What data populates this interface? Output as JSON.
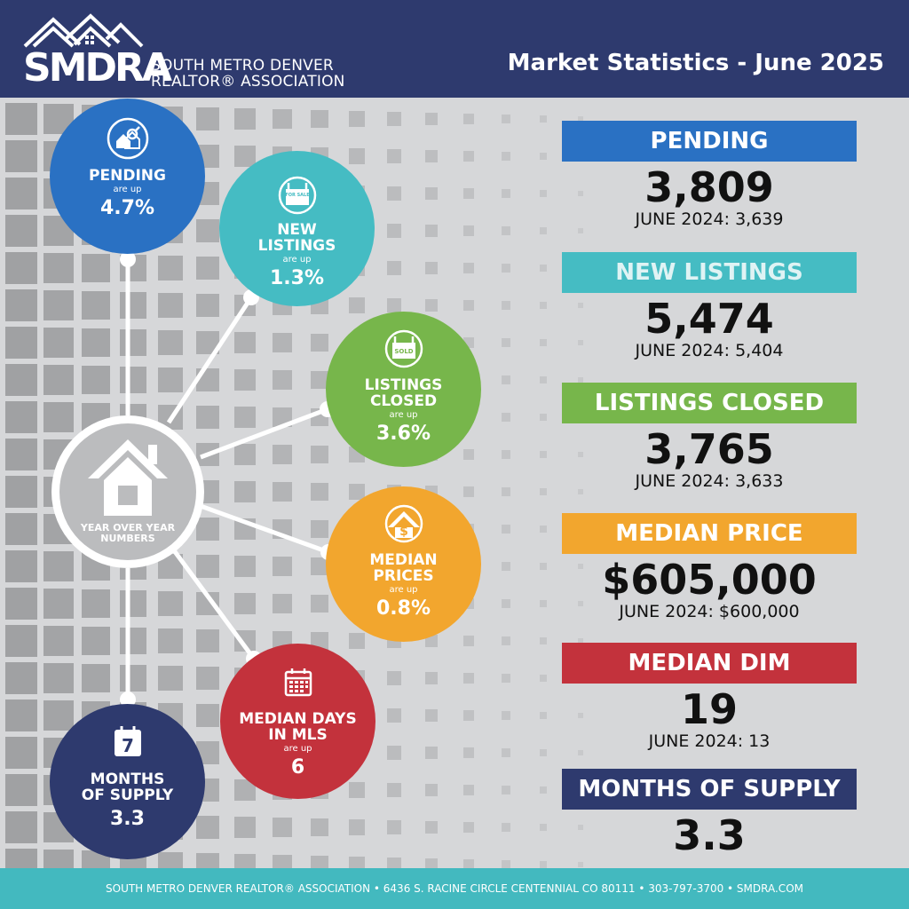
{
  "header": {
    "logo_text": "SMDRA",
    "logo_line1": "SOUTH METRO DENVER",
    "logo_line2": "REALTOR® ASSOCIATION",
    "title": "Market Statistics - June 2025"
  },
  "hub": {
    "label": "YEAR OVER YEAR\nNUMBERS",
    "icon": "house-icon"
  },
  "circles": [
    {
      "key": "pending",
      "label": "PENDING",
      "sub": "are up",
      "value": "4.7%",
      "color": "#2a71c3",
      "icon": "house-search-icon"
    },
    {
      "key": "new_listings",
      "label": "NEW\nLISTINGS",
      "sub": "are up",
      "value": "1.3%",
      "color": "#45bcc3",
      "icon": "for-sale-sign-icon"
    },
    {
      "key": "listings_closed",
      "label": "LISTINGS\nCLOSED",
      "sub": "are up",
      "value": "3.6%",
      "color": "#77b64b",
      "icon": "sold-sign-icon"
    },
    {
      "key": "median_prices",
      "label": "MEDIAN\nPRICES",
      "sub": "are up",
      "value": "0.8%",
      "color": "#f2a62e",
      "icon": "house-dollar-icon"
    },
    {
      "key": "median_days",
      "label": "MEDIAN DAYS\nIN MLS",
      "sub": "are up",
      "value": "6",
      "color": "#c3323c",
      "icon": "calendar-icon"
    },
    {
      "key": "months_supply",
      "label": "MONTHS\nOF SUPPLY",
      "sub": "",
      "value": "3.3",
      "color": "#2e3a6e",
      "icon": "calendar-7-icon"
    }
  ],
  "calendar_icon_number": "7",
  "for_sale_icon_text": "FOR SALE",
  "sold_icon_text": "SOLD",
  "stats": [
    {
      "key": "pending",
      "label": "PENDING",
      "value": "3,809",
      "prev": "JUNE 2024: 3,639",
      "color": "#2a71c3",
      "text_color": "#ffffff"
    },
    {
      "key": "new_listings",
      "label": "NEW LISTINGS",
      "value": "5,474",
      "prev": "JUNE 2024: 5,404",
      "color": "#45bcc3",
      "text_color": "#dff3f4"
    },
    {
      "key": "listings_closed",
      "label": "LISTINGS CLOSED",
      "value": "3,765",
      "prev": "JUNE 2024: 3,633",
      "color": "#77b64b",
      "text_color": "#ffffff"
    },
    {
      "key": "median_price",
      "label": "MEDIAN PRICE",
      "value": "$605,000",
      "prev": "JUNE 2024: $600,000",
      "color": "#f2a62e",
      "text_color": "#ffffff"
    },
    {
      "key": "median_dim",
      "label": "MEDIAN DIM",
      "value": "19",
      "prev": "JUNE 2024: 13",
      "color": "#c3323c",
      "text_color": "#ffffff"
    },
    {
      "key": "months_supply",
      "label": "MONTHS OF SUPPLY",
      "value": "3.3",
      "prev": "",
      "color": "#2e3a6e",
      "text_color": "#ffffff"
    }
  ],
  "footer": {
    "text": "SOUTH METRO DENVER REALTOR® ASSOCIATION • 6436 S. RACINE CIRCLE CENTENNIAL CO 80111 • 303-797-3700 • SMDRA.COM"
  }
}
